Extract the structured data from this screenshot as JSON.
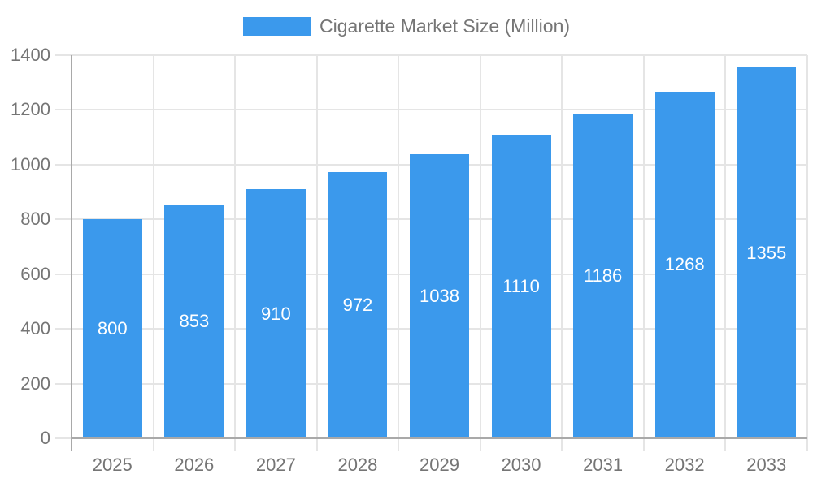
{
  "chart_data": {
    "type": "bar",
    "title": "Cigarette Market Size (Million)",
    "categories": [
      "2025",
      "2026",
      "2027",
      "2028",
      "2029",
      "2030",
      "2031",
      "2032",
      "2033"
    ],
    "values": [
      800,
      853,
      910,
      972,
      1038,
      1110,
      1186,
      1268,
      1355
    ],
    "xlabel": "",
    "ylabel": "",
    "ylim": [
      0,
      1400
    ],
    "yticks": [
      0,
      200,
      400,
      600,
      800,
      1000,
      1200,
      1400
    ],
    "grid": true,
    "legend_position": "top",
    "value_labels": "centered-inside-bars",
    "colors": {
      "bar": "#3b99ec",
      "value_label": "#ffffff",
      "tick_label": "#757575",
      "legend_text": "#757575",
      "grid": "#e5e5e5",
      "axis": "#a9a9a9",
      "background": "#ffffff"
    }
  }
}
